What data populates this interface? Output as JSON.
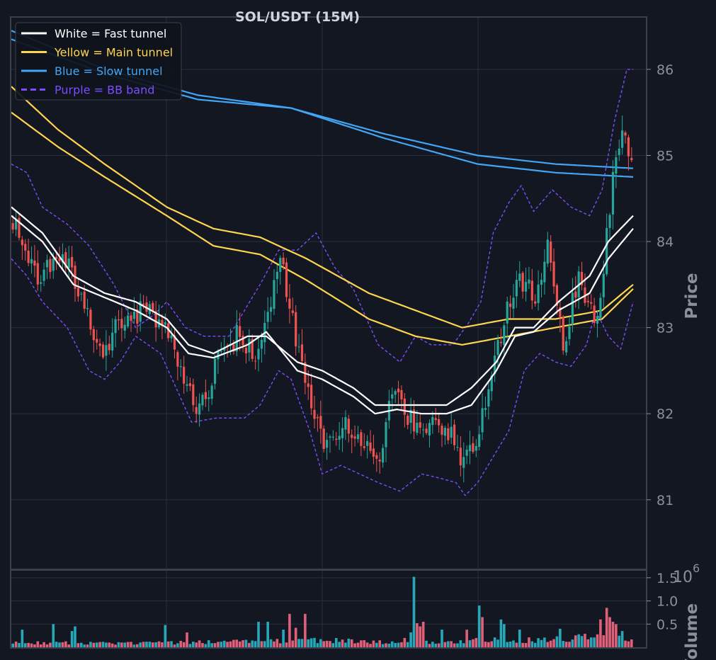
{
  "chart_data": {
    "type": "candlestick",
    "title": "SOL/USDT (15M)",
    "ylabel": "Price",
    "volume_label": "Volume",
    "volume_exponent_base": "10",
    "volume_exponent_power": "6",
    "ylim": [
      80.2,
      86.6
    ],
    "yticks": [
      "81",
      "82",
      "83",
      "84",
      "85",
      "86"
    ],
    "volume_ylim": [
      0,
      1.65
    ],
    "volume_yticks": [
      "0.5",
      "1.0",
      "1.5"
    ],
    "grid": true,
    "legend_position": "top-left",
    "colors": {
      "background": "#131722",
      "grid": "#2a2e39",
      "axis": "#3a3f4b",
      "tick_text": "#8a8f98",
      "title_text": "#d1d4dc",
      "up_candle": "#26a69a",
      "down_candle": "#ef5350",
      "volume_up": "#26a8b8",
      "volume_down": "#e0607a",
      "fast_tunnel": "#ffffff",
      "main_tunnel": "#ffd54f",
      "slow_tunnel": "#42a5f5",
      "bb_band": "#7c4dff"
    },
    "legend": [
      {
        "label": "White = Fast tunnel",
        "color": "#ffffff",
        "style": "solid"
      },
      {
        "label": "Yellow = Main tunnel",
        "color": "#ffd54f",
        "style": "solid"
      },
      {
        "label": "Blue = Slow tunnel",
        "color": "#42a5f5",
        "style": "solid"
      },
      {
        "label": "Purple = BB band",
        "color": "#7c4dff",
        "style": "dashed"
      }
    ],
    "bar_count": 200,
    "close_anchors": [
      [
        0,
        84.2
      ],
      [
        8,
        83.6
      ],
      [
        15,
        83.9
      ],
      [
        22,
        83.4
      ],
      [
        28,
        82.7
      ],
      [
        35,
        83.1
      ],
      [
        42,
        83.2
      ],
      [
        48,
        83.1
      ],
      [
        55,
        82.4
      ],
      [
        60,
        82.0
      ],
      [
        66,
        82.6
      ],
      [
        72,
        82.9
      ],
      [
        78,
        82.7
      ],
      [
        82,
        83.2
      ],
      [
        86,
        83.8
      ],
      [
        90,
        83.1
      ],
      [
        95,
        82.2
      ],
      [
        100,
        81.6
      ],
      [
        108,
        81.9
      ],
      [
        114,
        81.6
      ],
      [
        118,
        81.5
      ],
      [
        122,
        82.3
      ],
      [
        127,
        82.0
      ],
      [
        131,
        81.8
      ],
      [
        135,
        82.0
      ],
      [
        140,
        81.8
      ],
      [
        145,
        81.4
      ],
      [
        150,
        81.8
      ],
      [
        155,
        82.6
      ],
      [
        162,
        83.6
      ],
      [
        168,
        83.4
      ],
      [
        172,
        83.9
      ],
      [
        177,
        82.8
      ],
      [
        182,
        83.6
      ],
      [
        188,
        83.0
      ],
      [
        193,
        84.8
      ],
      [
        196,
        85.3
      ],
      [
        199,
        84.9
      ]
    ],
    "fast_tunnel_upper": [
      [
        0,
        84.4
      ],
      [
        10,
        84.1
      ],
      [
        20,
        83.6
      ],
      [
        30,
        83.4
      ],
      [
        40,
        83.3
      ],
      [
        50,
        83.1
      ],
      [
        57,
        82.8
      ],
      [
        65,
        82.7
      ],
      [
        76,
        82.9
      ],
      [
        82,
        82.9
      ],
      [
        92,
        82.6
      ],
      [
        100,
        82.5
      ],
      [
        110,
        82.3
      ],
      [
        117,
        82.1
      ],
      [
        124,
        82.1
      ],
      [
        132,
        82.1
      ],
      [
        140,
        82.1
      ],
      [
        148,
        82.3
      ],
      [
        156,
        82.6
      ],
      [
        162,
        83.0
      ],
      [
        168,
        83.0
      ],
      [
        176,
        83.3
      ],
      [
        186,
        83.6
      ],
      [
        192,
        84.0
      ],
      [
        200,
        84.3
      ]
    ],
    "fast_tunnel_lower": [
      [
        0,
        84.3
      ],
      [
        10,
        84.0
      ],
      [
        20,
        83.5
      ],
      [
        30,
        83.35
      ],
      [
        40,
        83.2
      ],
      [
        50,
        83.0
      ],
      [
        57,
        82.7
      ],
      [
        65,
        82.65
      ],
      [
        76,
        82.8
      ],
      [
        82,
        82.95
      ],
      [
        92,
        82.5
      ],
      [
        100,
        82.4
      ],
      [
        110,
        82.2
      ],
      [
        117,
        82.0
      ],
      [
        124,
        82.05
      ],
      [
        132,
        82.0
      ],
      [
        140,
        82.0
      ],
      [
        148,
        82.1
      ],
      [
        156,
        82.5
      ],
      [
        162,
        82.9
      ],
      [
        168,
        82.95
      ],
      [
        176,
        83.2
      ],
      [
        186,
        83.4
      ],
      [
        192,
        83.8
      ],
      [
        200,
        84.15
      ]
    ],
    "main_tunnel_upper": [
      [
        0,
        85.8
      ],
      [
        15,
        85.3
      ],
      [
        30,
        84.9
      ],
      [
        50,
        84.4
      ],
      [
        65,
        84.15
      ],
      [
        80,
        84.05
      ],
      [
        95,
        83.8
      ],
      [
        115,
        83.4
      ],
      [
        130,
        83.2
      ],
      [
        145,
        83.0
      ],
      [
        160,
        83.1
      ],
      [
        175,
        83.1
      ],
      [
        190,
        83.2
      ],
      [
        200,
        83.5
      ]
    ],
    "main_tunnel_lower": [
      [
        0,
        85.5
      ],
      [
        15,
        85.1
      ],
      [
        30,
        84.75
      ],
      [
        50,
        84.3
      ],
      [
        65,
        83.95
      ],
      [
        80,
        83.85
      ],
      [
        95,
        83.55
      ],
      [
        115,
        83.1
      ],
      [
        130,
        82.9
      ],
      [
        145,
        82.8
      ],
      [
        160,
        82.9
      ],
      [
        175,
        83.0
      ],
      [
        190,
        83.1
      ],
      [
        200,
        83.45
      ]
    ],
    "slow_tunnel_upper": [
      [
        0,
        86.45
      ],
      [
        30,
        86.0
      ],
      [
        60,
        85.7
      ],
      [
        90,
        85.55
      ],
      [
        120,
        85.25
      ],
      [
        150,
        85.0
      ],
      [
        175,
        84.9
      ],
      [
        200,
        84.85
      ]
    ],
    "slow_tunnel_lower": [
      [
        0,
        86.35
      ],
      [
        30,
        85.95
      ],
      [
        60,
        85.65
      ],
      [
        90,
        85.55
      ],
      [
        120,
        85.2
      ],
      [
        150,
        84.9
      ],
      [
        175,
        84.8
      ],
      [
        200,
        84.75
      ]
    ],
    "bb_upper": [
      [
        0,
        84.9
      ],
      [
        5,
        84.8
      ],
      [
        10,
        84.4
      ],
      [
        18,
        84.2
      ],
      [
        25,
        83.95
      ],
      [
        33,
        83.5
      ],
      [
        40,
        83.0
      ],
      [
        46,
        83.15
      ],
      [
        50,
        83.3
      ],
      [
        56,
        83.0
      ],
      [
        62,
        82.9
      ],
      [
        70,
        82.9
      ],
      [
        80,
        83.5
      ],
      [
        86,
        83.9
      ],
      [
        92,
        83.9
      ],
      [
        98,
        84.1
      ],
      [
        104,
        83.7
      ],
      [
        110,
        83.45
      ],
      [
        118,
        82.8
      ],
      [
        125,
        82.6
      ],
      [
        130,
        82.9
      ],
      [
        135,
        82.8
      ],
      [
        142,
        82.8
      ],
      [
        147,
        83.05
      ],
      [
        151,
        83.3
      ],
      [
        155,
        84.1
      ],
      [
        160,
        84.45
      ],
      [
        164,
        84.65
      ],
      [
        168,
        84.35
      ],
      [
        174,
        84.6
      ],
      [
        180,
        84.4
      ],
      [
        186,
        84.3
      ],
      [
        190,
        84.6
      ],
      [
        194,
        85.4
      ],
      [
        198,
        86.0
      ],
      [
        200,
        86.0
      ]
    ],
    "bb_lower": [
      [
        0,
        83.8
      ],
      [
        5,
        83.6
      ],
      [
        10,
        83.3
      ],
      [
        18,
        83.0
      ],
      [
        25,
        82.5
      ],
      [
        30,
        82.4
      ],
      [
        35,
        82.6
      ],
      [
        40,
        82.9
      ],
      [
        48,
        82.7
      ],
      [
        53,
        82.3
      ],
      [
        58,
        81.9
      ],
      [
        66,
        81.95
      ],
      [
        75,
        81.95
      ],
      [
        80,
        82.1
      ],
      [
        86,
        82.5
      ],
      [
        90,
        82.4
      ],
      [
        96,
        81.8
      ],
      [
        100,
        81.3
      ],
      [
        106,
        81.4
      ],
      [
        112,
        81.3
      ],
      [
        118,
        81.2
      ],
      [
        125,
        81.1
      ],
      [
        132,
        81.3
      ],
      [
        138,
        81.25
      ],
      [
        143,
        81.2
      ],
      [
        146,
        81.05
      ],
      [
        150,
        81.2
      ],
      [
        155,
        81.5
      ],
      [
        160,
        81.8
      ],
      [
        165,
        82.5
      ],
      [
        170,
        82.7
      ],
      [
        175,
        82.6
      ],
      [
        180,
        82.55
      ],
      [
        185,
        82.8
      ],
      [
        188,
        83.2
      ],
      [
        192,
        82.9
      ],
      [
        196,
        82.75
      ],
      [
        200,
        83.3
      ]
    ],
    "volume_anchors": [
      [
        0,
        0.1
      ],
      [
        30,
        0.08
      ],
      [
        60,
        0.1
      ],
      [
        80,
        0.12
      ],
      [
        100,
        0.14
      ],
      [
        125,
        0.1
      ],
      [
        150,
        0.15
      ],
      [
        170,
        0.14
      ],
      [
        190,
        0.25
      ],
      [
        199,
        0.15
      ]
    ],
    "volume_spikes": [
      [
        3,
        0.38
      ],
      [
        13,
        0.5
      ],
      [
        19,
        0.35
      ],
      [
        20,
        0.45
      ],
      [
        49,
        0.48
      ],
      [
        56,
        0.32
      ],
      [
        79,
        0.55
      ],
      [
        82,
        0.55
      ],
      [
        87,
        0.38
      ],
      [
        89,
        0.72
      ],
      [
        91,
        0.42
      ],
      [
        94,
        0.72
      ],
      [
        126,
        0.2
      ],
      [
        128,
        0.32
      ],
      [
        129,
        1.52
      ],
      [
        130,
        0.52
      ],
      [
        131,
        0.45
      ],
      [
        132,
        0.55
      ],
      [
        138,
        0.38
      ],
      [
        146,
        0.38
      ],
      [
        150,
        0.9
      ],
      [
        151,
        0.65
      ],
      [
        157,
        0.6
      ],
      [
        158,
        0.5
      ],
      [
        163,
        0.38
      ],
      [
        176,
        0.4
      ],
      [
        182,
        0.28
      ],
      [
        189,
        0.6
      ],
      [
        191,
        0.85
      ],
      [
        192,
        0.65
      ],
      [
        193,
        0.55
      ],
      [
        194,
        0.5
      ],
      [
        196,
        0.35
      ]
    ]
  }
}
